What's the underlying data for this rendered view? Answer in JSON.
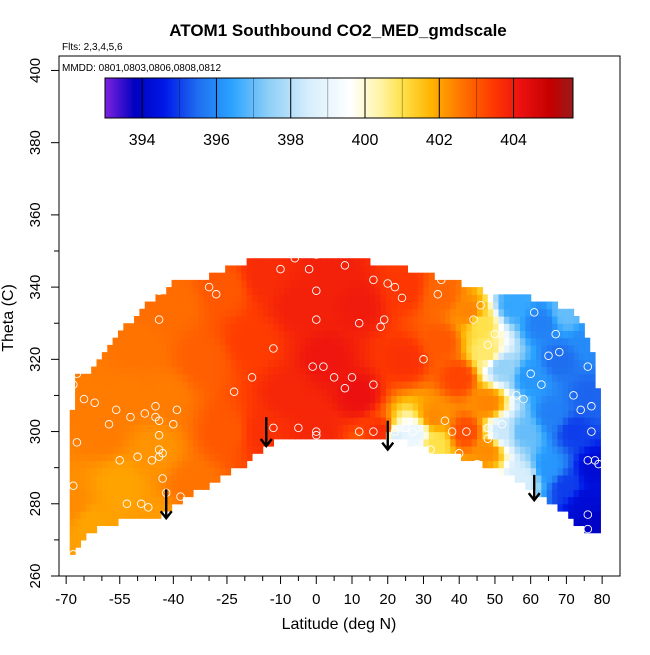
{
  "chart_data": {
    "type": "heatmap",
    "title": "ATOM1 Southbound CO2_MED_gmdscale",
    "annotations": {
      "flights": "Flts: 2,3,4,5,6",
      "dates": "MMDD: 0801,0803,0806,0808,0812"
    },
    "xlabel": "Latitude (deg N)",
    "ylabel": "Theta (C)",
    "xlim": [
      -72,
      85
    ],
    "ylim": [
      260,
      404
    ],
    "x_ticks": [
      -70,
      -55,
      -40,
      -25,
      -10,
      0,
      10,
      20,
      30,
      40,
      50,
      60,
      70,
      80
    ],
    "x_minor_ticks": [
      -65,
      -60,
      -50,
      -45,
      -35,
      -30,
      -20,
      -15,
      -5,
      5,
      15,
      25,
      35,
      45,
      55,
      65,
      75
    ],
    "y_ticks": [
      260,
      280,
      300,
      320,
      340,
      360,
      380,
      400
    ],
    "y_minor_ticks": [
      270,
      290,
      310,
      330,
      350
    ],
    "colorbar": {
      "min": 393,
      "max": 405.6,
      "ticks": [
        394,
        396,
        398,
        400,
        402,
        404
      ],
      "major_lines": [
        394,
        396,
        398,
        400,
        402,
        404
      ],
      "minor_lines": [
        395,
        397,
        399,
        401,
        403
      ]
    },
    "color_stops": [
      [
        393.0,
        "#7f22e0"
      ],
      [
        393.8,
        "#0000c0"
      ],
      [
        394.6,
        "#0018e8"
      ],
      [
        395.5,
        "#1f6ef0"
      ],
      [
        396.4,
        "#2aa2ff"
      ],
      [
        397.4,
        "#8dcff7"
      ],
      [
        398.5,
        "#d8eefc"
      ],
      [
        399.6,
        "#ffffff"
      ],
      [
        400.4,
        "#fff4a8"
      ],
      [
        401.0,
        "#ffe24a"
      ],
      [
        401.8,
        "#ffb300"
      ],
      [
        402.6,
        "#ff7400"
      ],
      [
        403.4,
        "#ff3c00"
      ],
      [
        404.2,
        "#ec1010"
      ],
      [
        405.0,
        "#c40000"
      ],
      [
        405.6,
        "#9a1a1a"
      ]
    ],
    "region_boundary": [
      [
        -68.5,
        266
      ],
      [
        -68.5,
        305
      ],
      [
        -67,
        315
      ],
      [
        -62,
        318
      ],
      [
        -55,
        327
      ],
      [
        -48,
        335
      ],
      [
        -40,
        341
      ],
      [
        -30,
        343
      ],
      [
        -20,
        347
      ],
      [
        -10,
        349
      ],
      [
        0,
        349
      ],
      [
        10,
        348
      ],
      [
        20,
        346
      ],
      [
        30,
        344
      ],
      [
        40,
        341
      ],
      [
        50,
        338
      ],
      [
        60,
        337
      ],
      [
        72,
        334
      ],
      [
        77,
        323
      ],
      [
        79,
        310
      ],
      [
        79,
        272
      ],
      [
        76,
        272
      ],
      [
        65,
        281
      ],
      [
        55,
        287
      ],
      [
        45,
        292
      ],
      [
        35,
        294
      ],
      [
        25,
        297
      ],
      [
        15,
        299
      ],
      [
        0,
        298
      ],
      [
        -10,
        299
      ],
      [
        -20,
        291
      ],
      [
        -30,
        285
      ],
      [
        -38,
        281
      ],
      [
        -44,
        276
      ],
      [
        -52,
        276
      ],
      [
        -62,
        273
      ],
      [
        -66,
        269
      ],
      [
        -68.5,
        266
      ]
    ],
    "field_anchors": [
      [
        -68,
        280,
        402.3
      ],
      [
        -68,
        310,
        402.5
      ],
      [
        -63,
        275,
        402.0
      ],
      [
        -60,
        300,
        402.5
      ],
      [
        -55,
        285,
        402.0
      ],
      [
        -52,
        310,
        402.5
      ],
      [
        -50,
        322,
        402.6
      ],
      [
        -45,
        275,
        402.1
      ],
      [
        -45,
        295,
        402.2
      ],
      [
        -42,
        310,
        402.5
      ],
      [
        -40,
        335,
        402.7
      ],
      [
        -35,
        285,
        402.6
      ],
      [
        -32,
        320,
        402.9
      ],
      [
        -25,
        340,
        403.0
      ],
      [
        -25,
        300,
        403.0
      ],
      [
        -18,
        325,
        403.4
      ],
      [
        -15,
        300,
        403.6
      ],
      [
        -15,
        343,
        403.7
      ],
      [
        -8,
        310,
        403.8
      ],
      [
        -5,
        335,
        403.9
      ],
      [
        0,
        300,
        403.8
      ],
      [
        3,
        320,
        404.1
      ],
      [
        5,
        345,
        403.9
      ],
      [
        12,
        310,
        404.2
      ],
      [
        12,
        335,
        404.0
      ],
      [
        18,
        300,
        403.7
      ],
      [
        25,
        320,
        403.6
      ],
      [
        25,
        340,
        403.5
      ],
      [
        22,
        298,
        398.6
      ],
      [
        28,
        299,
        399.0
      ],
      [
        33,
        297,
        401.0
      ],
      [
        33,
        304,
        402.3
      ],
      [
        35,
        325,
        403.0
      ],
      [
        35,
        338,
        402.8
      ],
      [
        42,
        300,
        403.2
      ],
      [
        40,
        315,
        403.3
      ],
      [
        43,
        333,
        402.4
      ],
      [
        48,
        295,
        402.3
      ],
      [
        48,
        308,
        402.4
      ],
      [
        48,
        322,
        400.8
      ],
      [
        46,
        330,
        401.0
      ],
      [
        52,
        300,
        398.3
      ],
      [
        52,
        318,
        397.5
      ],
      [
        55,
        335,
        396.5
      ],
      [
        58,
        287,
        398.5
      ],
      [
        58,
        300,
        397.0
      ],
      [
        60,
        315,
        396.2
      ],
      [
        63,
        330,
        395.8
      ],
      [
        65,
        290,
        396.2
      ],
      [
        66,
        305,
        395.8
      ],
      [
        68,
        320,
        395.5
      ],
      [
        70,
        285,
        395.0
      ],
      [
        72,
        300,
        395.0
      ],
      [
        75,
        280,
        394.2
      ],
      [
        76,
        310,
        395.4
      ],
      [
        77,
        275,
        393.9
      ],
      [
        78,
        290,
        394.2
      ],
      [
        76,
        325,
        396.0
      ],
      [
        70,
        333,
        397.0
      ]
    ],
    "wind_arrows": [
      {
        "lat": -42,
        "theta_start": 284,
        "theta_end": 276
      },
      {
        "lat": -14,
        "theta_start": 304,
        "theta_end": 296
      },
      {
        "lat": 20,
        "theta_start": 303,
        "theta_end": 295
      },
      {
        "lat": 61,
        "theta_start": 288,
        "theta_end": 281
      }
    ],
    "sample_points": [
      [
        -68,
        266
      ],
      [
        -68,
        285
      ],
      [
        -67,
        297
      ],
      [
        -68,
        313
      ],
      [
        -67,
        316
      ],
      [
        -65,
        309
      ],
      [
        -62,
        308
      ],
      [
        -58,
        302
      ],
      [
        -56,
        306
      ],
      [
        -55,
        292
      ],
      [
        -53,
        280
      ],
      [
        -52,
        304
      ],
      [
        -50,
        293
      ],
      [
        -48,
        305
      ],
      [
        -46,
        292
      ],
      [
        -45,
        304
      ],
      [
        -45,
        307
      ],
      [
        -44,
        295
      ],
      [
        -44,
        293
      ],
      [
        -43,
        294
      ],
      [
        -43,
        287
      ],
      [
        -44,
        303
      ],
      [
        -44,
        299
      ],
      [
        -42,
        283
      ],
      [
        -38,
        282
      ],
      [
        -39,
        306
      ],
      [
        -40,
        302
      ],
      [
        -47,
        279
      ],
      [
        -49,
        280
      ],
      [
        -44,
        331
      ],
      [
        -44,
        339
      ],
      [
        -30,
        340
      ],
      [
        -28,
        338
      ],
      [
        -23,
        311
      ],
      [
        -18,
        315
      ],
      [
        -12,
        323
      ],
      [
        -10,
        345
      ],
      [
        -6,
        348
      ],
      [
        -2,
        345
      ],
      [
        0,
        349
      ],
      [
        0,
        339
      ],
      [
        0,
        331
      ],
      [
        -1,
        318
      ],
      [
        2,
        318
      ],
      [
        0,
        300
      ],
      [
        0,
        299
      ],
      [
        -5,
        301
      ],
      [
        -12,
        301
      ],
      [
        5,
        315
      ],
      [
        8,
        312
      ],
      [
        8,
        346
      ],
      [
        10,
        315
      ],
      [
        12,
        300
      ],
      [
        12,
        330
      ],
      [
        16,
        300
      ],
      [
        16,
        342
      ],
      [
        16,
        313
      ],
      [
        18,
        329
      ],
      [
        19,
        331
      ],
      [
        20,
        341
      ],
      [
        22,
        340
      ],
      [
        24,
        337
      ],
      [
        22,
        300
      ],
      [
        25,
        301
      ],
      [
        27,
        300
      ],
      [
        28,
        295
      ],
      [
        30,
        320
      ],
      [
        32,
        295
      ],
      [
        34,
        338
      ],
      [
        35,
        342
      ],
      [
        36,
        303
      ],
      [
        38,
        300
      ],
      [
        40,
        294
      ],
      [
        42,
        343
      ],
      [
        42,
        300
      ],
      [
        44,
        331
      ],
      [
        45,
        291
      ],
      [
        46,
        335
      ],
      [
        48,
        324
      ],
      [
        48,
        301
      ],
      [
        48,
        298
      ],
      [
        50,
        327
      ],
      [
        52,
        302
      ],
      [
        56,
        310
      ],
      [
        58,
        309
      ],
      [
        60,
        316
      ],
      [
        61,
        333
      ],
      [
        63,
        313
      ],
      [
        65,
        321
      ],
      [
        67,
        327
      ],
      [
        68,
        322
      ],
      [
        72,
        310
      ],
      [
        74,
        306
      ],
      [
        76,
        318
      ],
      [
        77,
        300
      ],
      [
        76,
        292
      ],
      [
        78,
        292
      ],
      [
        79,
        291
      ],
      [
        76,
        273
      ],
      [
        76,
        277
      ],
      [
        77,
        307
      ]
    ]
  }
}
